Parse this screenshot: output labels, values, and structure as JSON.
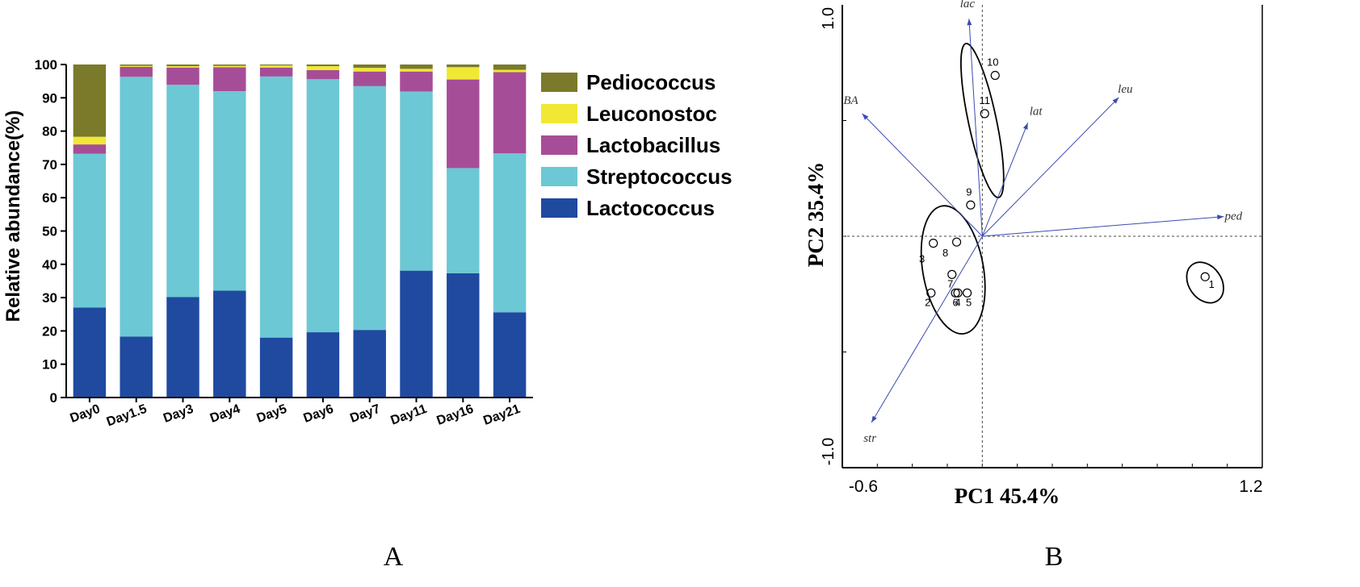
{
  "panel_a": {
    "caption": "A",
    "legend": [
      {
        "label": "Pediococcus",
        "color": "#7a7a2a"
      },
      {
        "label": "Leuconostoc",
        "color": "#f0e834"
      },
      {
        "label": "Lactobacillus",
        "color": "#a64d98"
      },
      {
        "label": "Streptococcus",
        "color": "#6cc8d4"
      },
      {
        "label": "Lactococcus",
        "color": "#1f4aa0"
      }
    ]
  },
  "panel_b": {
    "caption": "B"
  },
  "chart_data": [
    {
      "type": "bar",
      "stacked": true,
      "ylabel": "Relative abundance(%)",
      "xlabel": "",
      "ylim": [
        0,
        100
      ],
      "yticks": [
        "0",
        "10",
        "20",
        "30",
        "40",
        "50",
        "60",
        "70",
        "80",
        "90",
        "100"
      ],
      "categories": [
        "Day0",
        "Day1.5",
        "Day3",
        "Day4",
        "Day5",
        "Day6",
        "Day7",
        "Day11",
        "Day16",
        "Day21"
      ],
      "series": [
        {
          "name": "Lactococcus",
          "color": "#1f4aa0",
          "values": [
            27,
            18.3,
            30.2,
            32.1,
            18,
            19.6,
            20.3,
            38.1,
            37.3,
            25.6
          ]
        },
        {
          "name": "Streptococcus",
          "color": "#6cc8d4",
          "values": [
            46.2,
            78,
            63.7,
            59.9,
            78.4,
            76,
            73.2,
            53.8,
            31.6,
            47.7
          ]
        },
        {
          "name": "Lactobacillus",
          "color": "#a64d98",
          "values": [
            2.8,
            3,
            5.2,
            7.2,
            2.7,
            2.7,
            4.4,
            6,
            26.6,
            24.4
          ]
        },
        {
          "name": "Leuconostoc",
          "color": "#f0e834",
          "values": [
            2.3,
            0.3,
            0.4,
            0.4,
            0.6,
            1.2,
            1.1,
            0.8,
            3.7,
            0.7
          ]
        },
        {
          "name": "Pediococcus",
          "color": "#7a7a2a",
          "values": [
            21.7,
            0.4,
            0.5,
            0.4,
            0.3,
            0.5,
            1,
            1.3,
            0.8,
            1.6
          ]
        }
      ]
    },
    {
      "type": "scatter",
      "subtype": "pca-biplot",
      "xlabel": "PC1 45.4%",
      "ylabel": "PC2 35.4%",
      "xlim": [
        -0.6,
        1.2
      ],
      "ylim": [
        -1.0,
        1.0
      ],
      "xtick_labels": [
        "-0.6",
        "1.2"
      ],
      "ytick_labels": [
        "1.0",
        "-1.0"
      ],
      "reference_lines": {
        "x": 0,
        "y": 0
      },
      "points": [
        {
          "label": "1",
          "x": 0.955,
          "y": -0.175
        },
        {
          "label": "2",
          "x": -0.22,
          "y": -0.245
        },
        {
          "label": "3",
          "x": -0.21,
          "y": -0.03
        },
        {
          "label": "4",
          "x": -0.105,
          "y": -0.245
        },
        {
          "label": "5",
          "x": -0.065,
          "y": -0.245
        },
        {
          "label": "6",
          "x": -0.115,
          "y": -0.245
        },
        {
          "label": "7",
          "x": -0.13,
          "y": -0.165
        },
        {
          "label": "8",
          "x": -0.11,
          "y": -0.025
        },
        {
          "label": "9",
          "x": -0.05,
          "y": 0.135
        },
        {
          "label": "10",
          "x": 0.055,
          "y": 0.695
        },
        {
          "label": "11",
          "x": 0.01,
          "y": 0.53
        }
      ],
      "vectors": [
        {
          "label": "lac",
          "x": -0.057,
          "y": 0.94
        },
        {
          "label": "BA",
          "x": -0.515,
          "y": 0.53
        },
        {
          "label": "lat",
          "x": 0.195,
          "y": 0.49
        },
        {
          "label": "leu",
          "x": 0.585,
          "y": 0.6
        },
        {
          "label": "ped",
          "x": 1.035,
          "y": 0.085
        },
        {
          "label": "str",
          "x": -0.475,
          "y": -0.805
        }
      ],
      "ellipses": [
        {
          "group": [
            "10",
            "11",
            "9"
          ],
          "cx": 0.0,
          "cy": 0.5,
          "rx": 0.06,
          "ry": 0.34,
          "angle": -12
        },
        {
          "group": [
            "2",
            "3",
            "4",
            "5",
            "6",
            "7",
            "8"
          ],
          "cx": -0.125,
          "cy": -0.145,
          "rx": 0.13,
          "ry": 0.28,
          "angle": -10
        },
        {
          "group": [
            "1"
          ],
          "cx": 0.955,
          "cy": -0.2,
          "rx": 0.07,
          "ry": 0.095,
          "angle": -35
        }
      ]
    }
  ]
}
